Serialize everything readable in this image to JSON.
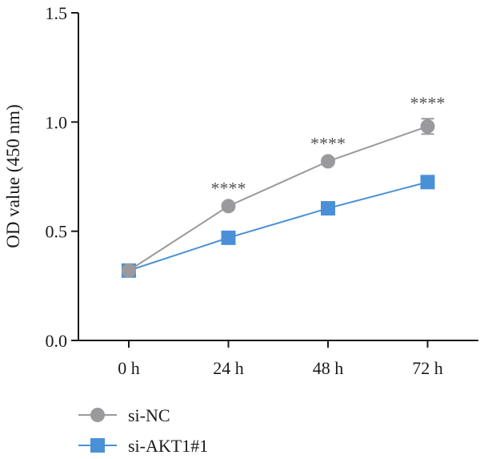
{
  "chart_data": {
    "type": "line",
    "categories": [
      "0 h",
      "24 h",
      "48 h",
      "72 h"
    ],
    "ylabel": "OD value (450 nm)",
    "xlabel": "",
    "ylim": [
      0,
      1.5
    ],
    "yticks": [
      "0.0",
      "0.5",
      "1.0",
      "1.5"
    ],
    "grid": false,
    "legend_position": "bottom-left",
    "series": [
      {
        "name": "si-NC",
        "values": [
          0.32,
          0.615,
          0.82,
          0.98
        ],
        "error": [
          0,
          0.01,
          0.01,
          0.035
        ],
        "color": "#9a9a9d",
        "marker": "circle"
      },
      {
        "name": "si-AKT1#1",
        "values": [
          0.32,
          0.47,
          0.605,
          0.725
        ],
        "error": [
          0,
          0.01,
          0.01,
          0.01
        ],
        "color": "#4a90d6",
        "marker": "square"
      }
    ],
    "annotations": [
      {
        "category": "24 h",
        "text": "****"
      },
      {
        "category": "48 h",
        "text": "****"
      },
      {
        "category": "72 h",
        "text": "****"
      }
    ]
  }
}
